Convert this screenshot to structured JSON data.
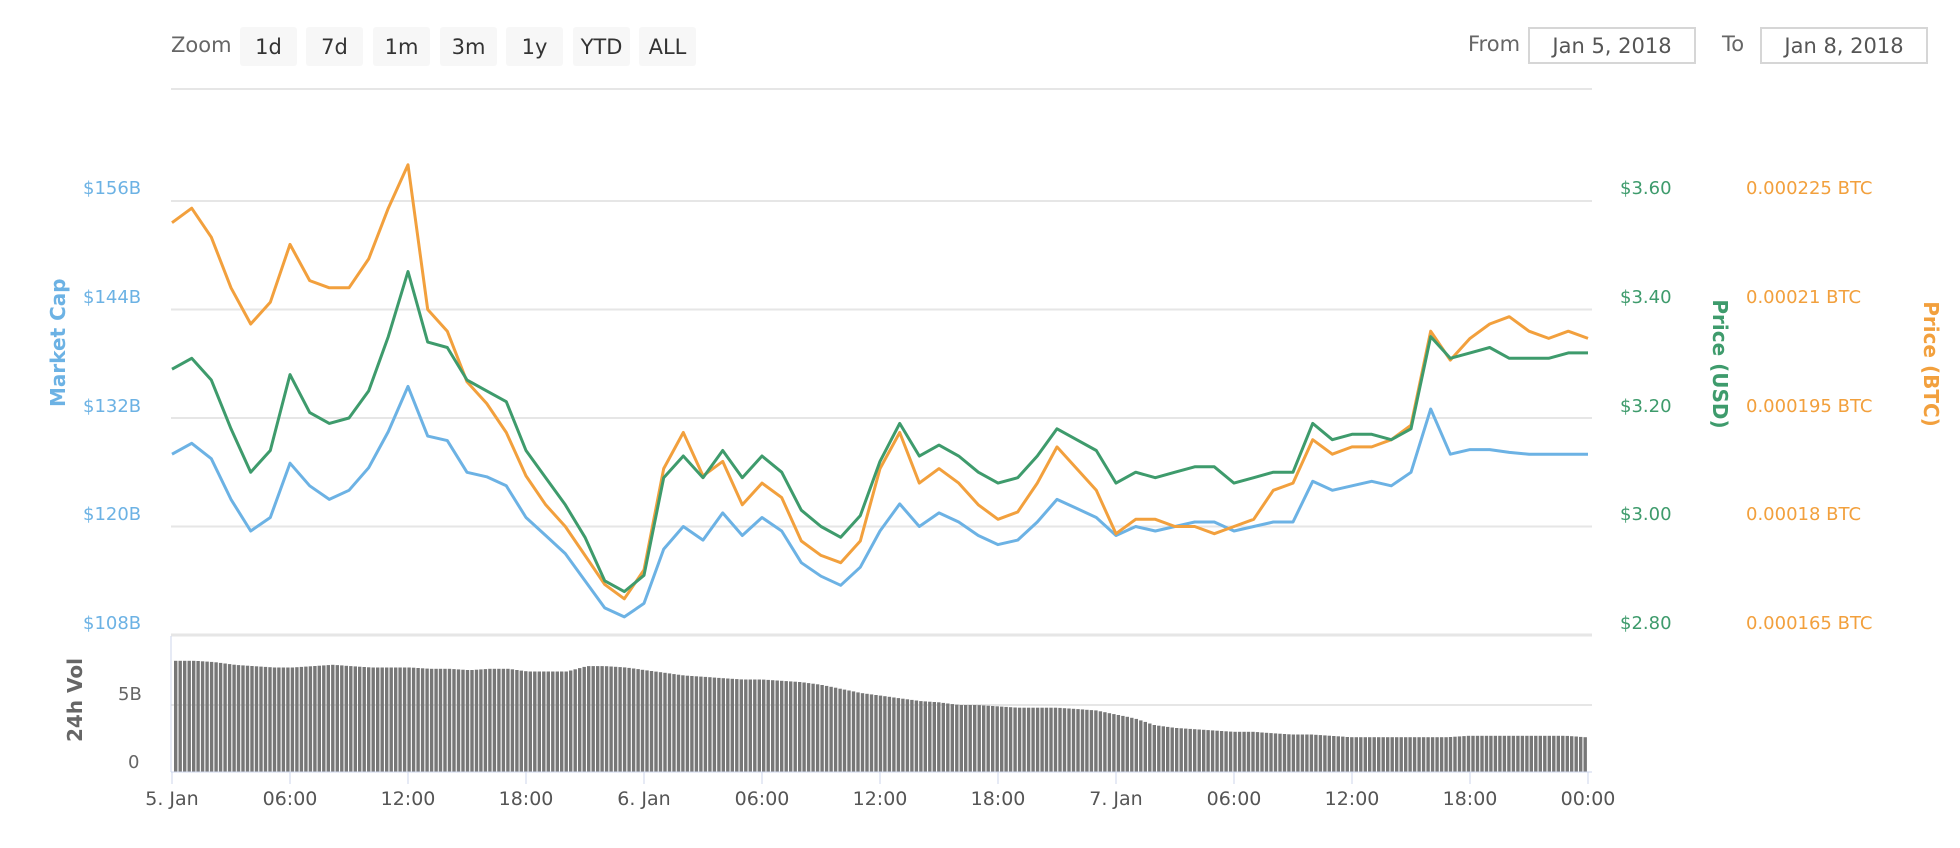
{
  "toolbar": {
    "zoom_label": "Zoom",
    "zoom_buttons": [
      "1d",
      "7d",
      "1m",
      "3m",
      "1y",
      "YTD",
      "ALL"
    ],
    "from_label": "From",
    "from_value": "Jan 5, 2018",
    "to_label": "To",
    "to_value": "Jan 8, 2018"
  },
  "colors": {
    "market_cap": "#6cb2e4",
    "price_usd": "#3e9b6c",
    "price_btc": "#f2a03d",
    "volume": "#777777",
    "grid": "#e6e6e6"
  },
  "chart_data": {
    "type": "line",
    "title": "",
    "x_unit": "hours since 5. Jan 00:00",
    "x": [
      0,
      1,
      2,
      3,
      4,
      5,
      6,
      7,
      8,
      9,
      10,
      11,
      12,
      13,
      14,
      15,
      16,
      17,
      18,
      19,
      20,
      21,
      22,
      23,
      24,
      25,
      26,
      27,
      28,
      29,
      30,
      31,
      32,
      33,
      34,
      35,
      36,
      37,
      38,
      39,
      40,
      41,
      42,
      43,
      44,
      45,
      46,
      47,
      48,
      49,
      50,
      51,
      52,
      53,
      54,
      55,
      56,
      57,
      58,
      59,
      60,
      61,
      62,
      63,
      64,
      65,
      66,
      67,
      68,
      69,
      70,
      71,
      72
    ],
    "x_tick_labels": [
      "5. Jan",
      "06:00",
      "12:00",
      "18:00",
      "6. Jan",
      "06:00",
      "12:00",
      "18:00",
      "7. Jan",
      "06:00",
      "12:00",
      "18:00",
      "00:00"
    ],
    "legend_position": "none",
    "grid": true,
    "axes": {
      "market_cap": {
        "label": "Market Cap",
        "ticks": [
          "$156B",
          "$144B",
          "$132B",
          "$120B",
          "$108B"
        ],
        "range": [
          108,
          156
        ]
      },
      "price_usd": {
        "label": "Price (USD)",
        "ticks": [
          "$3.60",
          "$3.40",
          "$3.20",
          "$3.00",
          "$2.80"
        ],
        "range": [
          2.8,
          3.6
        ]
      },
      "price_btc": {
        "label": "Price (BTC)",
        "ticks": [
          "0.000225 BTC",
          "0.00021 BTC",
          "0.000195 BTC",
          "0.00018 BTC",
          "0.000165 BTC"
        ],
        "range": [
          0.000165,
          0.000225
        ]
      },
      "volume": {
        "label": "24h Vol",
        "ticks": [
          "5B",
          "0"
        ],
        "range": [
          0,
          8.5
        ]
      }
    },
    "series": [
      {
        "name": "Market Cap",
        "unit": "B USD",
        "axis": "market_cap",
        "values": [
          128.0,
          129.2,
          127.5,
          123.0,
          119.5,
          121.0,
          127.0,
          124.5,
          123.0,
          124.0,
          126.5,
          130.5,
          135.5,
          130.0,
          129.5,
          126.0,
          125.5,
          124.5,
          121.0,
          119.0,
          117.0,
          114.0,
          111.0,
          110.0,
          111.5,
          117.5,
          120.0,
          118.5,
          121.5,
          119.0,
          121.0,
          119.5,
          116.0,
          114.5,
          113.5,
          115.5,
          119.5,
          122.5,
          120.0,
          121.5,
          120.5,
          119.0,
          118.0,
          118.5,
          120.5,
          123.0,
          122.0,
          121.0,
          119.0,
          120.0,
          119.5,
          120.0,
          120.5,
          120.5,
          119.5,
          120.0,
          120.5,
          120.5,
          125.0,
          124.0,
          124.5,
          125.0,
          124.5,
          126.0,
          133.0,
          128.0,
          128.5,
          128.5,
          128.2,
          128.0,
          128.0,
          128.0,
          128.0
        ]
      },
      {
        "name": "Price (USD)",
        "unit": "USD",
        "axis": "price_usd",
        "values": [
          3.29,
          3.31,
          3.27,
          3.18,
          3.1,
          3.14,
          3.28,
          3.21,
          3.19,
          3.2,
          3.25,
          3.35,
          3.47,
          3.34,
          3.33,
          3.27,
          3.25,
          3.23,
          3.14,
          3.09,
          3.04,
          2.98,
          2.9,
          2.88,
          2.91,
          3.09,
          3.13,
          3.09,
          3.14,
          3.09,
          3.13,
          3.1,
          3.03,
          3.0,
          2.98,
          3.02,
          3.12,
          3.19,
          3.13,
          3.15,
          3.13,
          3.1,
          3.08,
          3.09,
          3.13,
          3.18,
          3.16,
          3.14,
          3.08,
          3.1,
          3.09,
          3.1,
          3.11,
          3.11,
          3.08,
          3.09,
          3.1,
          3.1,
          3.19,
          3.16,
          3.17,
          3.17,
          3.16,
          3.18,
          3.35,
          3.31,
          3.32,
          3.33,
          3.31,
          3.31,
          3.31,
          3.32,
          3.32
        ]
      },
      {
        "name": "Price (BTC)",
        "unit": "BTC",
        "axis": "price_btc",
        "values": [
          0.000222,
          0.000224,
          0.00022,
          0.000213,
          0.000208,
          0.000211,
          0.000219,
          0.000214,
          0.000213,
          0.000213,
          0.000217,
          0.000224,
          0.00023,
          0.00021,
          0.000207,
          0.0002,
          0.000197,
          0.000193,
          0.000187,
          0.000183,
          0.00018,
          0.000176,
          0.000172,
          0.00017,
          0.000174,
          0.000188,
          0.000193,
          0.000187,
          0.000189,
          0.000183,
          0.000186,
          0.000184,
          0.000178,
          0.000176,
          0.000175,
          0.000178,
          0.000188,
          0.000193,
          0.000186,
          0.000188,
          0.000186,
          0.000183,
          0.000181,
          0.000182,
          0.000186,
          0.000191,
          0.000188,
          0.000185,
          0.000179,
          0.000181,
          0.000181,
          0.00018,
          0.00018,
          0.000179,
          0.00018,
          0.000181,
          0.000185,
          0.000186,
          0.000192,
          0.00019,
          0.000191,
          0.000191,
          0.000192,
          0.000194,
          0.000207,
          0.000203,
          0.000206,
          0.000208,
          0.000209,
          0.000207,
          0.000206,
          0.000207,
          0.000206
        ]
      },
      {
        "name": "24h Vol",
        "unit": "B USD",
        "axis": "volume",
        "values": [
          8.3,
          8.3,
          8.2,
          8.0,
          7.9,
          7.8,
          7.8,
          7.9,
          8.0,
          7.9,
          7.8,
          7.8,
          7.8,
          7.7,
          7.7,
          7.6,
          7.7,
          7.7,
          7.5,
          7.5,
          7.5,
          7.9,
          7.9,
          7.8,
          7.6,
          7.4,
          7.2,
          7.1,
          7.0,
          6.9,
          6.9,
          6.8,
          6.7,
          6.5,
          6.2,
          5.9,
          5.7,
          5.5,
          5.3,
          5.2,
          5.0,
          5.0,
          4.9,
          4.8,
          4.8,
          4.8,
          4.7,
          4.6,
          4.3,
          4.0,
          3.5,
          3.3,
          3.2,
          3.1,
          3.0,
          3.0,
          2.9,
          2.8,
          2.8,
          2.7,
          2.6,
          2.6,
          2.6,
          2.6,
          2.6,
          2.6,
          2.7,
          2.7,
          2.7,
          2.7,
          2.7,
          2.7,
          2.6
        ]
      }
    ]
  }
}
